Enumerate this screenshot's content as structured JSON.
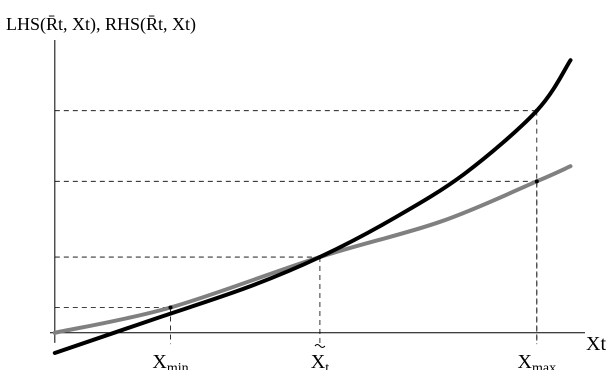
{
  "chart_data": {
    "type": "line",
    "ylabel": "LHS(R̄t, Xt), RHS(R̄t, Xt)",
    "xlabel": "Xt",
    "x_range": [
      -0.01,
      1.1
    ],
    "y_range": [
      -0.1,
      1.16
    ],
    "grid": false,
    "legend": "none",
    "tick_labels": [
      {
        "x": 0.24,
        "base": "X",
        "sub": "min"
      },
      {
        "x": 0.55,
        "base": "X",
        "sub": "t",
        "accent": "tilde"
      },
      {
        "x": 1.0,
        "base": "X",
        "sub": "max"
      }
    ],
    "series": [
      {
        "color": "#000000",
        "points": [
          [
            0.0,
            -0.08
          ],
          [
            0.2,
            0.05
          ],
          [
            0.4,
            0.18
          ],
          [
            0.55,
            0.3
          ],
          [
            0.7,
            0.45
          ],
          [
            0.85,
            0.63
          ],
          [
            1.0,
            0.88
          ],
          [
            1.07,
            1.08
          ]
        ]
      },
      {
        "color": "#808080",
        "points": [
          [
            0.0,
            0.0
          ],
          [
            0.24,
            0.1
          ],
          [
            0.55,
            0.3
          ],
          [
            0.8,
            0.44
          ],
          [
            1.0,
            0.6
          ],
          [
            1.07,
            0.66
          ]
        ]
      }
    ],
    "marked_points": [
      {
        "x": 0.24,
        "y": 0.1
      },
      {
        "x": 0.55,
        "y": 0.3
      },
      {
        "x": 1.0,
        "y": 0.6
      },
      {
        "x": 1.0,
        "y": 0.88
      }
    ],
    "reference_lines": [
      {
        "x": 0.24,
        "y": 0.1
      },
      {
        "x": 0.55,
        "y": 0.3
      },
      {
        "x": 1.0,
        "y": 0.6
      },
      {
        "x": 1.0,
        "y": 0.88
      }
    ]
  }
}
